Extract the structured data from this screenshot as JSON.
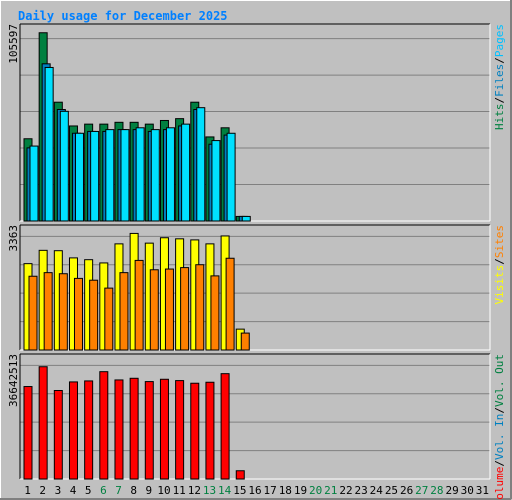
{
  "chart_data": {
    "type": "bar",
    "title": "Daily usage for December 2025",
    "x": [
      "1",
      "2",
      "3",
      "4",
      "5",
      "6",
      "7",
      "8",
      "9",
      "10",
      "11",
      "12",
      "13",
      "14",
      "15",
      "16",
      "17",
      "18",
      "19",
      "20",
      "21",
      "22",
      "23",
      "24",
      "25",
      "26",
      "27",
      "28",
      "29",
      "30",
      "31"
    ],
    "weekend_days": [
      6,
      7,
      13,
      14,
      20,
      21,
      27,
      28
    ],
    "panels": [
      {
        "name": "hits-files-pages",
        "ymax": 105597,
        "ymax_label": "105597",
        "right_label": [
          {
            "text": "Hits",
            "color": "#008040"
          },
          {
            "text": "/",
            "color": "#000000"
          },
          {
            "text": "Files",
            "color": "#0080c0"
          },
          {
            "text": "/",
            "color": "#000000"
          },
          {
            "text": "Pages",
            "color": "#00c0ff"
          }
        ],
        "series": [
          {
            "name": "Hits",
            "color": "#008040",
            "values": [
              45000,
              103000,
              65000,
              52000,
              53000,
              53000,
              54000,
              54000,
              53000,
              55000,
              56000,
              65000,
              46000,
              51000,
              2500,
              0,
              0,
              0,
              0,
              0,
              0,
              0,
              0,
              0,
              0,
              0,
              0,
              0,
              0,
              0,
              0
            ]
          },
          {
            "name": "Files",
            "color": "#0080c0",
            "values": [
              40000,
              86000,
              61000,
              48000,
              49000,
              49000,
              50000,
              50000,
              49000,
              50000,
              52000,
              61000,
              42000,
              47000,
              2500,
              0,
              0,
              0,
              0,
              0,
              0,
              0,
              0,
              0,
              0,
              0,
              0,
              0,
              0,
              0,
              0
            ]
          },
          {
            "name": "Pages",
            "color": "#00e0ff",
            "values": [
              41000,
              84000,
              60000,
              48000,
              49000,
              50000,
              50000,
              51000,
              50000,
              51000,
              53000,
              62000,
              44000,
              48000,
              2500,
              0,
              0,
              0,
              0,
              0,
              0,
              0,
              0,
              0,
              0,
              0,
              0,
              0,
              0,
              0,
              0
            ]
          }
        ]
      },
      {
        "name": "visits-sites",
        "ymax": 3363,
        "ymax_label": "3363",
        "right_label": [
          {
            "text": "Visits",
            "color": "#ffff00"
          },
          {
            "text": "/",
            "color": "#000000"
          },
          {
            "text": "Sites",
            "color": "#ff8000"
          }
        ],
        "series": [
          {
            "name": "Visits",
            "color": "#ffff00",
            "values": [
              2400,
              2770,
              2760,
              2560,
              2510,
              2420,
              2950,
              3240,
              2970,
              3120,
              3090,
              3060,
              2950,
              3170,
              580,
              0,
              0,
              0,
              0,
              0,
              0,
              0,
              0,
              0,
              0,
              0,
              0,
              0,
              0,
              0,
              0
            ]
          },
          {
            "name": "Sites",
            "color": "#ff8000",
            "values": [
              2050,
              2150,
              2120,
              1990,
              1940,
              1720,
              2150,
              2490,
              2230,
              2250,
              2290,
              2370,
              2060,
              2550,
              470,
              0,
              0,
              0,
              0,
              0,
              0,
              0,
              0,
              0,
              0,
              0,
              0,
              0,
              0,
              0,
              0
            ]
          }
        ]
      },
      {
        "name": "volume",
        "ymax": 36642513,
        "ymax_label": "36642513",
        "right_label": [
          {
            "text": "Volume",
            "color": "#ff0000"
          },
          {
            "text": "/",
            "color": "#000000"
          },
          {
            "text": "Vol. In",
            "color": "#0080c0"
          },
          {
            "text": "/",
            "color": "#000000"
          },
          {
            "text": "Vol. Out",
            "color": "#008040"
          }
        ],
        "series": [
          {
            "name": "Volume",
            "color": "#ff0000",
            "values": [
              28000000,
              34000000,
              26800000,
              29400000,
              29700000,
              32500000,
              30000000,
              30500000,
              29500000,
              30200000,
              29800000,
              29000000,
              29300000,
              31900000,
              2500000,
              0,
              0,
              0,
              0,
              0,
              0,
              0,
              0,
              0,
              0,
              0,
              0,
              0,
              0,
              0,
              0
            ]
          }
        ]
      }
    ]
  }
}
